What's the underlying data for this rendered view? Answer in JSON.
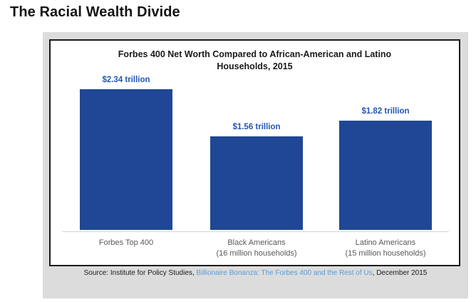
{
  "page": {
    "heading": "The Racial Wealth Divide"
  },
  "chart_data": {
    "type": "bar",
    "title": "Forbes 400 Net Worth Compared to African-American and Latino Households, 2015",
    "title_line1": "Forbes 400 Net Worth Compared to African-American and Latino",
    "title_line2": "Households, 2015",
    "unit": "trillions of US dollars",
    "ylim": [
      0,
      2.4
    ],
    "grid": "off",
    "legend": "none",
    "categories": [
      "Forbes Top 400",
      "Black Americans (16 million households)",
      "Latino Americans (15 million households)"
    ],
    "values": [
      2.34,
      1.56,
      1.82
    ],
    "bars": [
      {
        "category": "Forbes Top 400",
        "subcategory": "",
        "value": 2.34,
        "value_label": "$2.34 trillion"
      },
      {
        "category": "Black Americans",
        "subcategory": "(16 million households)",
        "value": 1.56,
        "value_label": "$1.56 trillion"
      },
      {
        "category": "Latino Americans",
        "subcategory": "(15 million households)",
        "value": 1.82,
        "value_label": "$1.82 trillion"
      }
    ],
    "bar_color": "#1f4795",
    "value_label_color": "#2257b2",
    "pixels_per_trillion": 84
  },
  "source": {
    "prefix": "Source: Institute for Policy Studies, ",
    "link_text": "Billionaire Bonanza: The Forbes 400 and the Rest of Us",
    "suffix": ", December 2015",
    "link_color": "#5b9bd5"
  }
}
